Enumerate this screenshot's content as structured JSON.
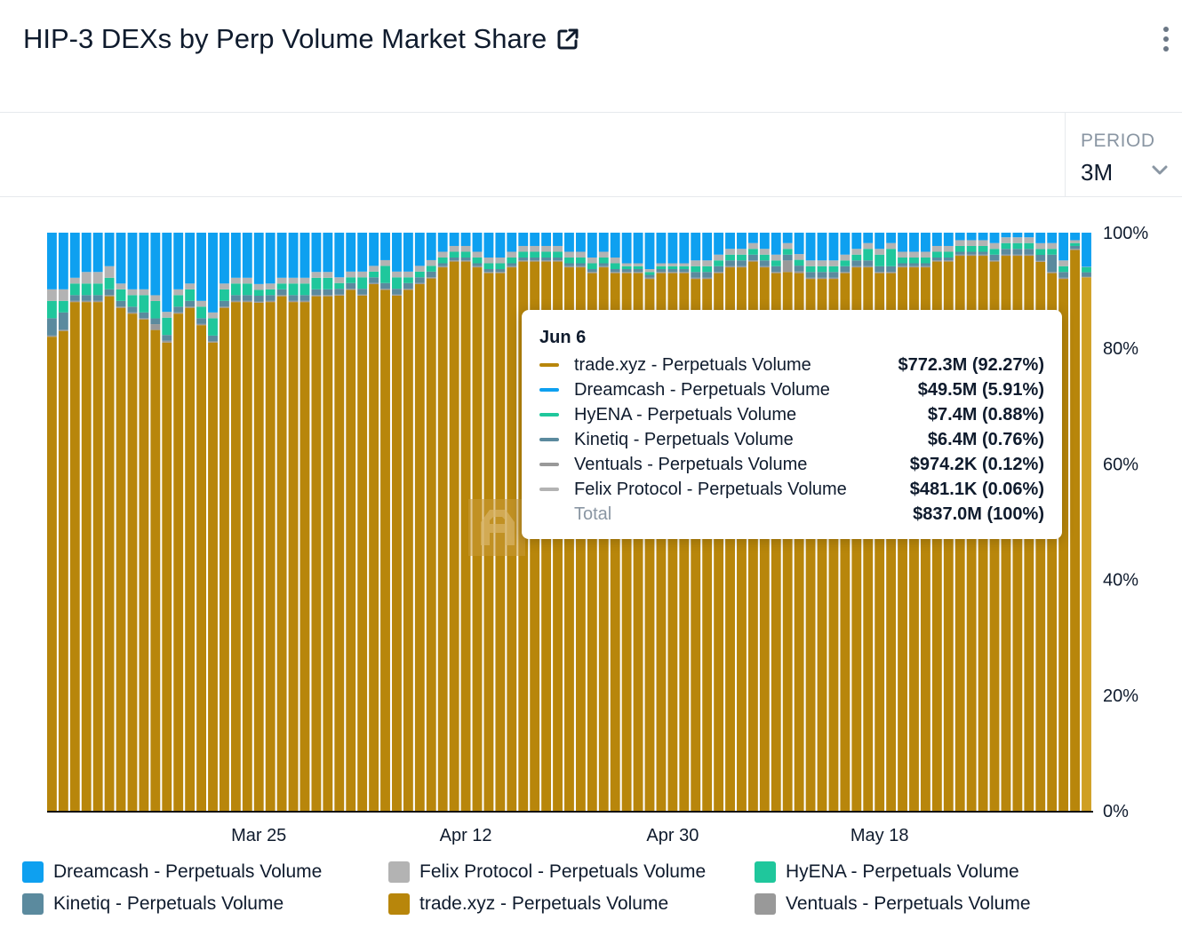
{
  "header": {
    "title": "HIP-3 DEXs by Perp Volume Market Share"
  },
  "period": {
    "label": "PERIOD",
    "value": "3M"
  },
  "colors": {
    "trade": "#b8860b",
    "trade_highlight": "#cf9f22",
    "dreamcash": "#0ea0f0",
    "hyena": "#1fc79c",
    "kinetiq": "#5b8a9e",
    "ventuals": "#999999",
    "felix": "#b3b3b3",
    "watermark": "#c89a3a"
  },
  "tooltip": {
    "date": "Jun 6",
    "rows": [
      {
        "name": "trade.xyz - Perpetuals Volume",
        "value": "$772.3M (92.27%)",
        "color": "#b8860b"
      },
      {
        "name": "Dreamcash - Perpetuals Volume",
        "value": "$49.5M (5.91%)",
        "color": "#0ea0f0"
      },
      {
        "name": "HyENA - Perpetuals Volume",
        "value": "$7.4M (0.88%)",
        "color": "#1fc79c"
      },
      {
        "name": "Kinetiq - Perpetuals Volume",
        "value": "$6.4M (0.76%)",
        "color": "#5b8a9e"
      },
      {
        "name": "Ventuals - Perpetuals Volume",
        "value": "$974.2K (0.12%)",
        "color": "#999999"
      },
      {
        "name": "Felix Protocol - Perpetuals Volume",
        "value": "$481.1K (0.06%)",
        "color": "#b3b3b3"
      }
    ],
    "total_label": "Total",
    "total_value": "$837.0M (100%)"
  },
  "legend": [
    {
      "name": "Dreamcash - Perpetuals Volume",
      "color": "#0ea0f0"
    },
    {
      "name": "Felix Protocol - Perpetuals Volume",
      "color": "#b3b3b3"
    },
    {
      "name": "HyENA - Perpetuals Volume",
      "color": "#1fc79c"
    },
    {
      "name": "Kinetiq - Perpetuals Volume",
      "color": "#5b8a9e"
    },
    {
      "name": "trade.xyz - Perpetuals Volume",
      "color": "#b8860b"
    },
    {
      "name": "Ventuals - Perpetuals Volume",
      "color": "#999999"
    }
  ],
  "chart_data": {
    "type": "bar",
    "stacked": true,
    "normalized": true,
    "title": "HIP-3 DEXs by Perp Volume Market Share",
    "y_tick_labels": [
      "0%",
      "20%",
      "40%",
      "60%",
      "80%",
      "100%"
    ],
    "ylim": [
      0,
      100
    ],
    "x_tick_labels": [
      "Mar 25",
      "Apr 12",
      "Apr 30",
      "May 18"
    ],
    "x_tick_bar_index": [
      18,
      36,
      54,
      72
    ],
    "highlight_index": 90,
    "highlight_date": "Jun 6",
    "series_order": [
      "trade",
      "ventuals",
      "kinetiq",
      "hyena",
      "felix",
      "dreamcash"
    ],
    "series": [
      {
        "key": "trade",
        "name": "trade.xyz - Perpetuals Volume",
        "values": [
          82,
          83,
          88,
          88,
          88,
          89,
          87,
          86,
          85,
          83,
          81,
          86,
          87,
          84,
          81,
          87,
          88,
          88,
          87,
          88,
          89,
          88,
          88,
          89,
          89,
          90,
          91,
          90,
          92,
          91,
          90,
          91,
          92,
          93,
          94,
          95,
          95,
          94,
          93,
          93,
          94,
          95,
          95,
          95,
          95,
          94,
          94,
          93,
          94,
          93,
          93,
          93,
          92,
          93,
          93,
          93,
          92,
          92,
          93,
          94,
          94,
          95,
          94,
          93,
          93,
          93,
          92,
          92,
          92,
          93,
          94,
          94,
          93,
          93,
          94,
          94,
          94,
          95,
          95,
          96,
          96,
          96,
          95,
          96,
          96,
          96,
          94,
          93,
          92,
          97,
          92.27
        ]
      },
      {
        "key": "ventuals",
        "name": "Ventuals - Perpetuals Volume",
        "values": [
          0.2,
          0.2,
          0.2,
          0.2,
          0.2,
          0.2,
          0.2,
          0.2,
          0.2,
          1,
          0.3,
          0.2,
          0.2,
          0.2,
          0.2,
          0.2,
          0.2,
          0.2,
          0.2,
          0.2,
          0.2,
          0.2,
          0.2,
          0.2,
          0.2,
          0.2,
          0.2,
          0.2,
          0.2,
          0.2,
          0.2,
          0.2,
          0.2,
          0.2,
          0.2,
          0.2,
          0.2,
          0.2,
          0.2,
          0.2,
          0.2,
          0.2,
          0.2,
          0.2,
          0.2,
          0.2,
          0.2,
          0.2,
          0.2,
          0.2,
          0.2,
          0.2,
          0.2,
          0.2,
          0.2,
          0.2,
          0.2,
          0.2,
          0.2,
          0.2,
          0.2,
          0.2,
          0.2,
          0.2,
          2,
          0.3,
          0.2,
          0.2,
          0.2,
          0.2,
          0.2,
          0.2,
          0.2,
          0.2,
          0.2,
          0.2,
          0.2,
          0.2,
          0.2,
          0.2,
          0.2,
          0.2,
          0.2,
          0.2,
          0.2,
          0.2,
          0.2,
          0.2,
          0.2,
          0.2,
          0.12
        ]
      },
      {
        "key": "kinetiq",
        "name": "Kinetiq - Perpetuals Volume",
        "values": [
          3,
          3,
          1,
          1,
          1,
          1,
          1,
          1,
          1,
          1,
          1,
          1,
          1,
          1,
          1,
          1,
          1,
          1,
          1,
          1,
          1,
          1,
          1,
          1,
          1,
          1,
          1,
          1,
          1,
          1,
          1,
          1,
          1,
          1,
          0.5,
          0.5,
          0.5,
          0.5,
          0.5,
          0.5,
          0.5,
          0.5,
          0.5,
          0.5,
          0.5,
          0.5,
          0.5,
          0.5,
          0.5,
          0.5,
          0.5,
          0.5,
          0.5,
          0.5,
          0.5,
          0.5,
          1,
          1,
          1,
          1,
          1,
          1,
          1,
          1,
          1,
          1,
          1,
          1,
          1,
          1,
          1,
          1,
          1,
          1,
          0.5,
          0.5,
          0.5,
          0.5,
          0.5,
          0.5,
          0.5,
          0.5,
          1,
          1,
          1,
          1,
          1,
          3,
          1,
          0.5,
          0.76
        ]
      },
      {
        "key": "hyena",
        "name": "HyENA - Perpetuals Volume",
        "values": [
          3,
          2,
          2,
          2,
          2,
          2,
          2,
          2,
          3,
          3,
          3,
          2,
          2,
          2,
          3,
          2,
          2,
          2,
          1,
          1,
          1,
          2,
          2,
          2,
          2,
          1,
          1,
          2,
          1,
          3,
          2,
          1,
          1,
          1,
          1,
          1,
          1,
          1,
          1,
          1,
          1,
          1,
          1,
          1,
          1,
          1,
          1,
          1,
          1,
          1,
          0.5,
          0.5,
          0.5,
          0.5,
          0.5,
          0.5,
          1,
          1,
          1,
          1,
          1,
          1,
          1,
          1,
          1,
          1,
          1,
          1,
          1,
          1,
          1,
          2,
          2,
          3,
          1,
          1,
          1,
          1,
          1,
          1,
          1,
          1,
          1,
          1,
          1,
          1,
          1,
          1,
          1,
          0.5,
          0.88
        ]
      },
      {
        "key": "felix",
        "name": "Felix Protocol - Perpetuals Volume",
        "values": [
          2,
          2,
          1,
          2,
          2,
          2,
          1,
          1,
          1,
          1,
          1,
          1,
          1,
          1,
          1,
          1,
          1,
          1,
          1,
          1,
          1,
          1,
          1,
          1,
          1,
          1,
          1,
          1,
          1,
          1,
          1,
          1,
          1,
          1,
          1,
          1,
          1,
          1,
          1,
          1,
          1,
          1,
          1,
          1,
          1,
          1,
          1,
          1,
          1,
          1,
          0.5,
          0.5,
          0.5,
          0.5,
          0.5,
          0.5,
          1,
          1,
          1,
          1,
          1,
          1,
          1,
          1,
          1,
          1,
          1,
          1,
          1,
          1,
          1,
          1,
          1,
          1,
          1,
          1,
          1,
          1,
          1,
          1,
          1,
          1,
          1,
          1,
          1,
          1,
          1,
          1,
          1,
          0.5,
          0.06
        ]
      },
      {
        "key": "dreamcash",
        "name": "Dreamcash - Perpetuals Volume",
        "values": [
          9.8,
          9.8,
          7.8,
          6.8,
          6.8,
          5.8,
          8.8,
          9.8,
          9.8,
          10.8,
          13.7,
          9.8,
          8.8,
          11.8,
          13.8,
          8.8,
          7.8,
          7.8,
          8.8,
          8.8,
          7.8,
          7.8,
          7.8,
          6.8,
          6.8,
          7.8,
          6.8,
          6.8,
          5.8,
          4.8,
          6.8,
          6.8,
          5.8,
          4.8,
          3.3,
          2.3,
          2.3,
          3.3,
          4.3,
          4.3,
          3.3,
          2.3,
          2.3,
          2.3,
          2.3,
          3.3,
          3.3,
          4.3,
          3.3,
          4.3,
          5.3,
          5.3,
          6.3,
          5.3,
          5.3,
          5.3,
          4.8,
          4.8,
          3.8,
          2.8,
          2.8,
          1.8,
          2.8,
          3.8,
          1.8,
          3.7,
          4.8,
          4.8,
          4.8,
          3.8,
          2.8,
          1.8,
          2.8,
          1.8,
          3.3,
          3.3,
          3.3,
          2.3,
          2.3,
          1.3,
          1.3,
          1.3,
          1.8,
          0.8,
          0.8,
          0.8,
          1.8,
          1.8,
          4.8,
          1.3,
          5.91
        ]
      }
    ]
  }
}
